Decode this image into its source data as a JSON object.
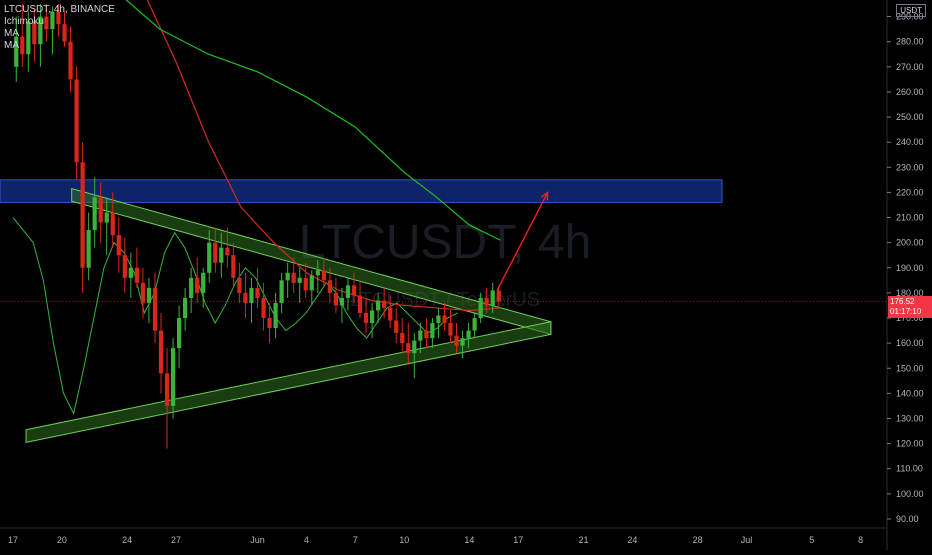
{
  "header": {
    "symbol_line": "LTCUSDT, 4h, BINANCE",
    "indicators": [
      "Ichimoku",
      "MA",
      "MA"
    ],
    "currency": "USDT"
  },
  "watermark": {
    "symbol": "LTCUSDT, 4h",
    "brand": "LTCUSDT / TetherUS"
  },
  "price_tag": {
    "price": "176.52",
    "countdown": "01:17:10"
  },
  "colors": {
    "background": "#000000",
    "bull": "#3bb33b",
    "bear": "#d9261c",
    "ma_red": "#d42a1f",
    "ma_green": "#1fbf1f",
    "zone_fill": "#0f2a7a",
    "triangle_fill": "#2f6e1f",
    "arrow": "#ff2020"
  },
  "chart_data": {
    "type": "candlestick",
    "title": "LTCUSDT, 4h, BINANCE",
    "ylim": [
      88,
      295
    ],
    "y_ticks": [
      90,
      100,
      110,
      120,
      130,
      140,
      150,
      160,
      170,
      180,
      190,
      200,
      210,
      220,
      230,
      240,
      250,
      260,
      270,
      280,
      290
    ],
    "y_tick_labels": [
      "90.00",
      "100.00",
      "110.00",
      "120.00",
      "130.00",
      "140.00",
      "150.00",
      "160.00",
      "170.00",
      "180.00",
      "190.00",
      "200.00",
      "210.00",
      "220.00",
      "230.00",
      "240.00",
      "250.00",
      "260.00",
      "270.00",
      "280.00",
      "290.00"
    ],
    "x_ticks": [
      {
        "label": "17",
        "day": 0
      },
      {
        "label": "20",
        "day": 3
      },
      {
        "label": "24",
        "day": 7
      },
      {
        "label": "27",
        "day": 10
      },
      {
        "label": "Jun",
        "day": 15
      },
      {
        "label": "4",
        "day": 18
      },
      {
        "label": "7",
        "day": 21
      },
      {
        "label": "10",
        "day": 24
      },
      {
        "label": "14",
        "day": 28
      },
      {
        "label": "17",
        "day": 31
      },
      {
        "label": "21",
        "day": 35
      },
      {
        "label": "24",
        "day": 38
      },
      {
        "label": "28",
        "day": 42
      },
      {
        "label": "Jul",
        "day": 45
      },
      {
        "label": "5",
        "day": 49
      },
      {
        "label": "8",
        "day": 52
      }
    ],
    "current_price": 176.52,
    "resistance_zone": {
      "low": 216,
      "high": 225
    },
    "triangle": {
      "upper": {
        "start_day": 3.6,
        "start_price": 219,
        "end_day": 33,
        "end_price": 166
      },
      "lower": {
        "start_day": 0.8,
        "start_price": 123,
        "end_day": 33,
        "end_price": 166
      },
      "width_price": 5
    },
    "projection_arrow": {
      "from_day": 29.7,
      "from_price": 181,
      "to_day": 32.8,
      "to_price": 220
    },
    "candles": [
      {
        "o": 270,
        "h": 290,
        "l": 264,
        "c": 282
      },
      {
        "o": 282,
        "h": 295,
        "l": 270,
        "c": 275
      },
      {
        "o": 275,
        "h": 292,
        "l": 268,
        "c": 288
      },
      {
        "o": 288,
        "h": 293,
        "l": 272,
        "c": 279
      },
      {
        "o": 279,
        "h": 295,
        "l": 270,
        "c": 290
      },
      {
        "o": 290,
        "h": 295,
        "l": 280,
        "c": 285
      },
      {
        "o": 285,
        "h": 294,
        "l": 275,
        "c": 292
      },
      {
        "o": 292,
        "h": 295,
        "l": 282,
        "c": 287
      },
      {
        "o": 287,
        "h": 292,
        "l": 278,
        "c": 280
      },
      {
        "o": 280,
        "h": 286,
        "l": 260,
        "c": 265
      },
      {
        "o": 265,
        "h": 270,
        "l": 225,
        "c": 232
      },
      {
        "o": 232,
        "h": 240,
        "l": 180,
        "c": 190
      },
      {
        "o": 190,
        "h": 212,
        "l": 185,
        "c": 205
      },
      {
        "o": 205,
        "h": 226,
        "l": 198,
        "c": 218
      },
      {
        "o": 218,
        "h": 224,
        "l": 200,
        "c": 208
      },
      {
        "o": 208,
        "h": 218,
        "l": 195,
        "c": 212
      },
      {
        "o": 212,
        "h": 220,
        "l": 198,
        "c": 203
      },
      {
        "o": 203,
        "h": 210,
        "l": 188,
        "c": 195
      },
      {
        "o": 195,
        "h": 202,
        "l": 180,
        "c": 186
      },
      {
        "o": 186,
        "h": 196,
        "l": 178,
        "c": 190
      },
      {
        "o": 190,
        "h": 198,
        "l": 182,
        "c": 184
      },
      {
        "o": 184,
        "h": 190,
        "l": 170,
        "c": 176
      },
      {
        "o": 176,
        "h": 186,
        "l": 168,
        "c": 182
      },
      {
        "o": 182,
        "h": 188,
        "l": 160,
        "c": 165
      },
      {
        "o": 165,
        "h": 172,
        "l": 140,
        "c": 148
      },
      {
        "o": 148,
        "h": 158,
        "l": 118,
        "c": 135
      },
      {
        "o": 135,
        "h": 162,
        "l": 130,
        "c": 158
      },
      {
        "o": 158,
        "h": 175,
        "l": 150,
        "c": 170
      },
      {
        "o": 170,
        "h": 182,
        "l": 165,
        "c": 178
      },
      {
        "o": 178,
        "h": 190,
        "l": 172,
        "c": 186
      },
      {
        "o": 186,
        "h": 194,
        "l": 176,
        "c": 180
      },
      {
        "o": 180,
        "h": 190,
        "l": 174,
        "c": 188
      },
      {
        "o": 188,
        "h": 205,
        "l": 184,
        "c": 200
      },
      {
        "o": 200,
        "h": 206,
        "l": 188,
        "c": 192
      },
      {
        "o": 192,
        "h": 204,
        "l": 186,
        "c": 198
      },
      {
        "o": 198,
        "h": 206,
        "l": 190,
        "c": 195
      },
      {
        "o": 195,
        "h": 200,
        "l": 182,
        "c": 186
      },
      {
        "o": 186,
        "h": 192,
        "l": 176,
        "c": 180
      },
      {
        "o": 180,
        "h": 188,
        "l": 170,
        "c": 176
      },
      {
        "o": 176,
        "h": 186,
        "l": 168,
        "c": 182
      },
      {
        "o": 182,
        "h": 190,
        "l": 174,
        "c": 178
      },
      {
        "o": 178,
        "h": 184,
        "l": 165,
        "c": 170
      },
      {
        "o": 170,
        "h": 176,
        "l": 160,
        "c": 166
      },
      {
        "o": 166,
        "h": 180,
        "l": 162,
        "c": 176
      },
      {
        "o": 176,
        "h": 188,
        "l": 172,
        "c": 185
      },
      {
        "o": 185,
        "h": 192,
        "l": 178,
        "c": 188
      },
      {
        "o": 188,
        "h": 194,
        "l": 180,
        "c": 184
      },
      {
        "o": 184,
        "h": 190,
        "l": 176,
        "c": 186
      },
      {
        "o": 186,
        "h": 192,
        "l": 178,
        "c": 181
      },
      {
        "o": 181,
        "h": 189,
        "l": 175,
        "c": 187
      },
      {
        "o": 187,
        "h": 193,
        "l": 180,
        "c": 189
      },
      {
        "o": 189,
        "h": 194,
        "l": 182,
        "c": 185
      },
      {
        "o": 185,
        "h": 190,
        "l": 176,
        "c": 180
      },
      {
        "o": 180,
        "h": 186,
        "l": 172,
        "c": 175
      },
      {
        "o": 175,
        "h": 182,
        "l": 168,
        "c": 178
      },
      {
        "o": 178,
        "h": 186,
        "l": 173,
        "c": 183
      },
      {
        "o": 183,
        "h": 188,
        "l": 176,
        "c": 179
      },
      {
        "o": 179,
        "h": 185,
        "l": 170,
        "c": 172
      },
      {
        "o": 172,
        "h": 178,
        "l": 164,
        "c": 168
      },
      {
        "o": 168,
        "h": 176,
        "l": 162,
        "c": 173
      },
      {
        "o": 173,
        "h": 180,
        "l": 168,
        "c": 177
      },
      {
        "o": 177,
        "h": 182,
        "l": 170,
        "c": 174
      },
      {
        "o": 174,
        "h": 179,
        "l": 166,
        "c": 169
      },
      {
        "o": 169,
        "h": 174,
        "l": 160,
        "c": 164
      },
      {
        "o": 164,
        "h": 170,
        "l": 156,
        "c": 160
      },
      {
        "o": 160,
        "h": 168,
        "l": 152,
        "c": 156
      },
      {
        "o": 156,
        "h": 164,
        "l": 146,
        "c": 161
      },
      {
        "o": 161,
        "h": 168,
        "l": 156,
        "c": 165
      },
      {
        "o": 165,
        "h": 170,
        "l": 158,
        "c": 162
      },
      {
        "o": 162,
        "h": 170,
        "l": 158,
        "c": 168
      },
      {
        "o": 168,
        "h": 174,
        "l": 162,
        "c": 171
      },
      {
        "o": 171,
        "h": 176,
        "l": 165,
        "c": 168
      },
      {
        "o": 168,
        "h": 173,
        "l": 160,
        "c": 163
      },
      {
        "o": 163,
        "h": 168,
        "l": 156,
        "c": 159
      },
      {
        "o": 159,
        "h": 165,
        "l": 154,
        "c": 162
      },
      {
        "o": 162,
        "h": 168,
        "l": 158,
        "c": 165
      },
      {
        "o": 165,
        "h": 172,
        "l": 162,
        "c": 170
      },
      {
        "o": 170,
        "h": 180,
        "l": 168,
        "c": 178
      },
      {
        "o": 178,
        "h": 182,
        "l": 172,
        "c": 175
      },
      {
        "o": 175,
        "h": 184,
        "l": 172,
        "c": 181
      },
      {
        "o": 181,
        "h": 183,
        "l": 174,
        "c": 176.52
      }
    ],
    "lagging_line": [
      210,
      205,
      200,
      185,
      160,
      140,
      132,
      150,
      170,
      190,
      200,
      196,
      188,
      172,
      180,
      196,
      204,
      198,
      188,
      176,
      168,
      175,
      184,
      190,
      186,
      178,
      170,
      165,
      168,
      172,
      178,
      184,
      180,
      172,
      166,
      162,
      168,
      174,
      176,
      172,
      168,
      164,
      166,
      170,
      172
    ],
    "ma_red": [
      {
        "day": 6,
        "price": 318
      },
      {
        "day": 8,
        "price": 300
      },
      {
        "day": 10,
        "price": 272
      },
      {
        "day": 12,
        "price": 240
      },
      {
        "day": 14,
        "price": 214
      },
      {
        "day": 16,
        "price": 200
      },
      {
        "day": 18,
        "price": 188
      },
      {
        "day": 20,
        "price": 181
      },
      {
        "day": 22,
        "price": 177
      },
      {
        "day": 24,
        "price": 175
      },
      {
        "day": 26,
        "price": 174
      },
      {
        "day": 28,
        "price": 173
      },
      {
        "day": 29.9,
        "price": 174
      }
    ],
    "ma_green": [
      {
        "day": 0,
        "price": 335
      },
      {
        "day": 3,
        "price": 318
      },
      {
        "day": 6,
        "price": 302
      },
      {
        "day": 9,
        "price": 285
      },
      {
        "day": 12,
        "price": 275
      },
      {
        "day": 15,
        "price": 268
      },
      {
        "day": 18,
        "price": 258
      },
      {
        "day": 21,
        "price": 246
      },
      {
        "day": 24,
        "price": 228
      },
      {
        "day": 26,
        "price": 218
      },
      {
        "day": 28,
        "price": 207
      },
      {
        "day": 29.9,
        "price": 201
      }
    ]
  }
}
